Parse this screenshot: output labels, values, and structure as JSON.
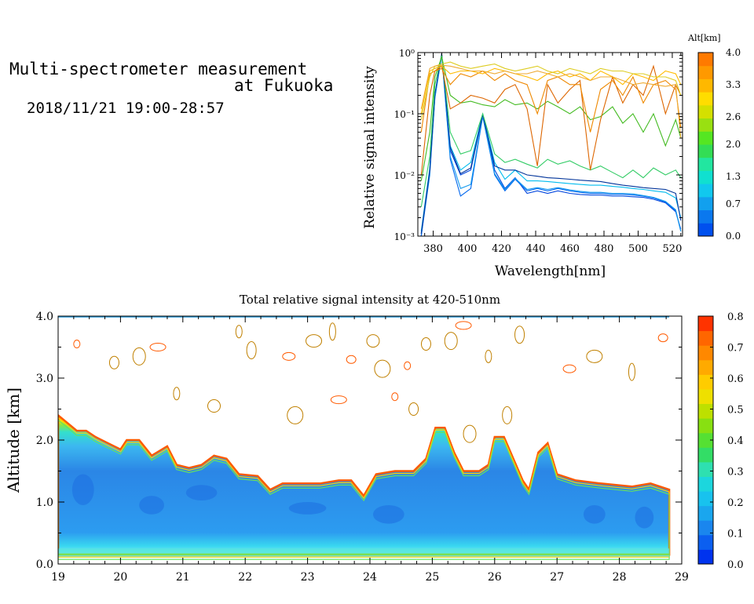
{
  "header": {
    "line1": "Multi-spectrometer measurement",
    "line2": "at Fukuoka",
    "line3": "2018/11/21 19:00-28:57"
  },
  "chart_data": [
    {
      "type": "line",
      "xlabel": "Wavelength[nm]",
      "ylabel": "Relative signal intensity",
      "x_ticks": [
        "380",
        "400",
        "420",
        "440",
        "460",
        "480",
        "500",
        "520"
      ],
      "y_ticks": [
        "10⁻³",
        "10⁻²",
        "10⁻¹",
        "10⁰"
      ],
      "xlim": [
        371,
        526
      ],
      "ylim": [
        0.001,
        1
      ],
      "yscale": "log",
      "colorbar": {
        "title": "Alt[km]",
        "ticks": [
          "0.0",
          "0.7",
          "1.3",
          "2.0",
          "2.6",
          "3.3",
          "4.0"
        ],
        "range": [
          0.0,
          4.0
        ]
      },
      "x": [
        373,
        378,
        381,
        385,
        390,
        396,
        402,
        409,
        416,
        422,
        428,
        435,
        441,
        447,
        453,
        460,
        466,
        472,
        478,
        485,
        491,
        497,
        503,
        509,
        516,
        522,
        525
      ],
      "series": [
        {
          "color": "#0044dd",
          "values": [
            0.001,
            0.012,
            0.2,
            0.95,
            0.025,
            0.01,
            0.012,
            0.095,
            0.012,
            0.006,
            0.009,
            0.005,
            0.0055,
            0.005,
            0.0055,
            0.005,
            0.0048,
            0.0047,
            0.0047,
            0.0045,
            0.0045,
            0.0044,
            0.0043,
            0.004,
            0.0035,
            0.0025,
            0.0013
          ]
        },
        {
          "color": "#0066ee",
          "values": [
            0.001,
            0.01,
            0.18,
            0.9,
            0.018,
            0.0045,
            0.006,
            0.09,
            0.01,
            0.0055,
            0.0085,
            0.0055,
            0.006,
            0.0055,
            0.006,
            0.0055,
            0.0052,
            0.005,
            0.005,
            0.0048,
            0.0048,
            0.0047,
            0.0045,
            0.0042,
            0.0036,
            0.0026,
            0.0012
          ]
        },
        {
          "color": "#1199ee",
          "values": [
            0.0011,
            0.011,
            0.19,
            0.92,
            0.02,
            0.006,
            0.007,
            0.093,
            0.0105,
            0.0058,
            0.0088,
            0.0058,
            0.0062,
            0.0058,
            0.0062,
            0.0057,
            0.0054,
            0.0052,
            0.0052,
            0.005,
            0.005,
            0.0049,
            0.0046,
            0.0043,
            0.0037,
            0.0027,
            0.0012
          ]
        },
        {
          "color": "#00bbee",
          "values": [
            0.0012,
            0.013,
            0.2,
            0.93,
            0.03,
            0.012,
            0.016,
            0.1,
            0.016,
            0.0085,
            0.012,
            0.008,
            0.008,
            0.0078,
            0.0075,
            0.0072,
            0.007,
            0.0068,
            0.0068,
            0.0065,
            0.0063,
            0.006,
            0.0058,
            0.0055,
            0.0052,
            0.0042,
            0.002
          ]
        },
        {
          "color": "#003399",
          "values": [
            0.0011,
            0.012,
            0.21,
            0.96,
            0.028,
            0.0105,
            0.013,
            0.098,
            0.014,
            0.012,
            0.012,
            0.01,
            0.0095,
            0.009,
            0.0088,
            0.0085,
            0.0082,
            0.008,
            0.0078,
            0.0072,
            0.0068,
            0.0065,
            0.0062,
            0.006,
            0.0058,
            0.005,
            0.0018
          ]
        },
        {
          "color": "#33cc66",
          "values": [
            0.003,
            0.02,
            0.3,
            0.9,
            0.05,
            0.022,
            0.025,
            0.1,
            0.022,
            0.016,
            0.018,
            0.015,
            0.013,
            0.018,
            0.015,
            0.017,
            0.014,
            0.012,
            0.014,
            0.011,
            0.009,
            0.012,
            0.009,
            0.013,
            0.01,
            0.012,
            0.009
          ]
        },
        {
          "color": "#44bb22",
          "values": [
            0.008,
            0.05,
            0.4,
            0.85,
            0.2,
            0.15,
            0.16,
            0.14,
            0.13,
            0.17,
            0.14,
            0.15,
            0.12,
            0.16,
            0.13,
            0.1,
            0.13,
            0.08,
            0.09,
            0.13,
            0.07,
            0.1,
            0.05,
            0.1,
            0.03,
            0.08,
            0.04
          ]
        },
        {
          "color": "#dd6600",
          "values": [
            0.01,
            0.2,
            0.5,
            0.6,
            0.12,
            0.15,
            0.2,
            0.18,
            0.15,
            0.25,
            0.3,
            0.12,
            0.014,
            0.3,
            0.15,
            0.25,
            0.35,
            0.012,
            0.08,
            0.4,
            0.15,
            0.3,
            0.2,
            0.6,
            0.1,
            0.3,
            0.2
          ]
        },
        {
          "color": "#ee8800",
          "values": [
            0.05,
            0.45,
            0.5,
            0.55,
            0.3,
            0.45,
            0.4,
            0.5,
            0.35,
            0.45,
            0.35,
            0.3,
            0.1,
            0.35,
            0.4,
            0.3,
            0.3,
            0.05,
            0.25,
            0.35,
            0.2,
            0.4,
            0.15,
            0.3,
            0.35,
            0.25,
            0.06
          ]
        },
        {
          "color": "#ffbb00",
          "values": [
            0.1,
            0.5,
            0.55,
            0.6,
            0.45,
            0.5,
            0.5,
            0.45,
            0.55,
            0.5,
            0.45,
            0.4,
            0.35,
            0.45,
            0.5,
            0.4,
            0.45,
            0.35,
            0.5,
            0.4,
            0.3,
            0.45,
            0.4,
            0.35,
            0.5,
            0.45,
            0.3
          ]
        },
        {
          "color": "#ddcc22",
          "values": [
            0.08,
            0.4,
            0.6,
            0.65,
            0.7,
            0.6,
            0.55,
            0.6,
            0.65,
            0.55,
            0.5,
            0.55,
            0.6,
            0.5,
            0.45,
            0.55,
            0.5,
            0.45,
            0.55,
            0.5,
            0.5,
            0.45,
            0.45,
            0.4,
            0.4,
            0.35,
            0.2
          ]
        },
        {
          "color": "#eeaa33",
          "values": [
            0.12,
            0.55,
            0.6,
            0.62,
            0.6,
            0.55,
            0.5,
            0.5,
            0.45,
            0.5,
            0.45,
            0.45,
            0.5,
            0.45,
            0.4,
            0.45,
            0.4,
            0.35,
            0.4,
            0.4,
            0.35,
            0.3,
            0.32,
            0.3,
            0.28,
            0.3,
            0.04
          ]
        }
      ]
    },
    {
      "type": "heatmap",
      "title": "Total relative signal intensity at 420-510nm",
      "ylabel": "Altitude [km]",
      "x_ticks": [
        "19",
        "20",
        "21",
        "22",
        "23",
        "24",
        "25",
        "26",
        "27",
        "28",
        "29"
      ],
      "y_ticks": [
        "0.0",
        "1.0",
        "2.0",
        "3.0",
        "4.0"
      ],
      "xlim": [
        19,
        29
      ],
      "ylim": [
        0.0,
        4.0
      ],
      "colorbar": {
        "ticks": [
          "0.0",
          "0.1",
          "0.2",
          "0.3",
          "0.4",
          "0.5",
          "0.6",
          "0.7",
          "0.8"
        ],
        "range": [
          0.0,
          0.8
        ]
      },
      "layer_top_km": [
        [
          19.0,
          2.4
        ],
        [
          19.3,
          2.15
        ],
        [
          19.45,
          2.15
        ],
        [
          19.6,
          2.05
        ],
        [
          19.8,
          1.95
        ],
        [
          20.0,
          1.85
        ],
        [
          20.1,
          2.0
        ],
        [
          20.3,
          2.0
        ],
        [
          20.5,
          1.75
        ],
        [
          20.75,
          1.9
        ],
        [
          20.9,
          1.6
        ],
        [
          21.1,
          1.55
        ],
        [
          21.3,
          1.6
        ],
        [
          21.5,
          1.75
        ],
        [
          21.7,
          1.7
        ],
        [
          21.9,
          1.45
        ],
        [
          22.2,
          1.42
        ],
        [
          22.4,
          1.2
        ],
        [
          22.6,
          1.3
        ],
        [
          22.9,
          1.3
        ],
        [
          23.2,
          1.3
        ],
        [
          23.5,
          1.35
        ],
        [
          23.7,
          1.35
        ],
        [
          23.9,
          1.1
        ],
        [
          24.1,
          1.45
        ],
        [
          24.4,
          1.5
        ],
        [
          24.7,
          1.5
        ],
        [
          24.9,
          1.7
        ],
        [
          25.05,
          2.2
        ],
        [
          25.2,
          2.2
        ],
        [
          25.35,
          1.8
        ],
        [
          25.5,
          1.5
        ],
        [
          25.75,
          1.5
        ],
        [
          25.9,
          1.6
        ],
        [
          26.0,
          2.05
        ],
        [
          26.15,
          2.05
        ],
        [
          26.3,
          1.7
        ],
        [
          26.45,
          1.35
        ],
        [
          26.55,
          1.2
        ],
        [
          26.7,
          1.8
        ],
        [
          26.85,
          1.95
        ],
        [
          27.0,
          1.45
        ],
        [
          27.3,
          1.35
        ],
        [
          27.7,
          1.3
        ],
        [
          28.2,
          1.25
        ],
        [
          28.5,
          1.3
        ],
        [
          28.8,
          1.2
        ]
      ]
    }
  ]
}
